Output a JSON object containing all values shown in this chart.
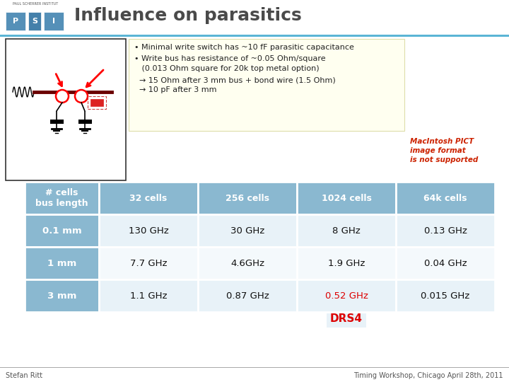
{
  "title": "Influence on parasitics",
  "title_color": "#4a4a4a",
  "title_fontsize": 18,
  "bg_color": "#ffffff",
  "header_bar_color": "#5bb5d5",
  "bullet_text_line1": "• Minimal write switch has ~10 fF parasitic capacitance",
  "bullet_text_line2": "• Write bus has resistance of ~0.05 Ohm/square",
  "bullet_text_line3": "   (0.013 Ohm square for 20k top metal option)",
  "bullet_text_line4": "  → 15 Ohm after 3 mm bus + bond wire (1.5 Ohm)",
  "bullet_text_line5": "  → 10 pF after 3 mm",
  "bullet_box_color": "#fffff0",
  "bullet_box_edge": "#ddddaa",
  "table_header_color": "#8ab8d0",
  "table_row_light": "#e8f2f8",
  "table_row_white": "#f4f9fc",
  "table_text_color": "#111111",
  "highlight_red": "#dd0000",
  "col_headers": [
    "# cells\nbus length",
    "32 cells",
    "256 cells",
    "1024 cells",
    "64k cells"
  ],
  "rows": [
    [
      "0.1 mm",
      "130 GHz",
      "30 GHz",
      "8 GHz",
      "0.13 GHz"
    ],
    [
      "1 mm",
      "7.7 GHz",
      "4.6GHz",
      "1.9 GHz",
      "0.04 GHz"
    ],
    [
      "3 mm",
      "1.1 GHz",
      "0.87 GHz",
      "0.52 GHz",
      "0.015 GHz"
    ]
  ],
  "highlight_cell_row": 2,
  "highlight_cell_col": 3,
  "drs4_label": "DRS4",
  "footer_left": "Stefan Ritt",
  "footer_right": "Timing Workshop, Chicago April 28th, 2011",
  "macintosh_lines": [
    "MacIntosh PICT",
    "image format",
    "is not supported"
  ],
  "macintosh_color": "#cc2200",
  "logo_text": "PAUL SCHERRER INSTITUT",
  "logo_color1": "#5590b8",
  "logo_color2": "#4480aa"
}
